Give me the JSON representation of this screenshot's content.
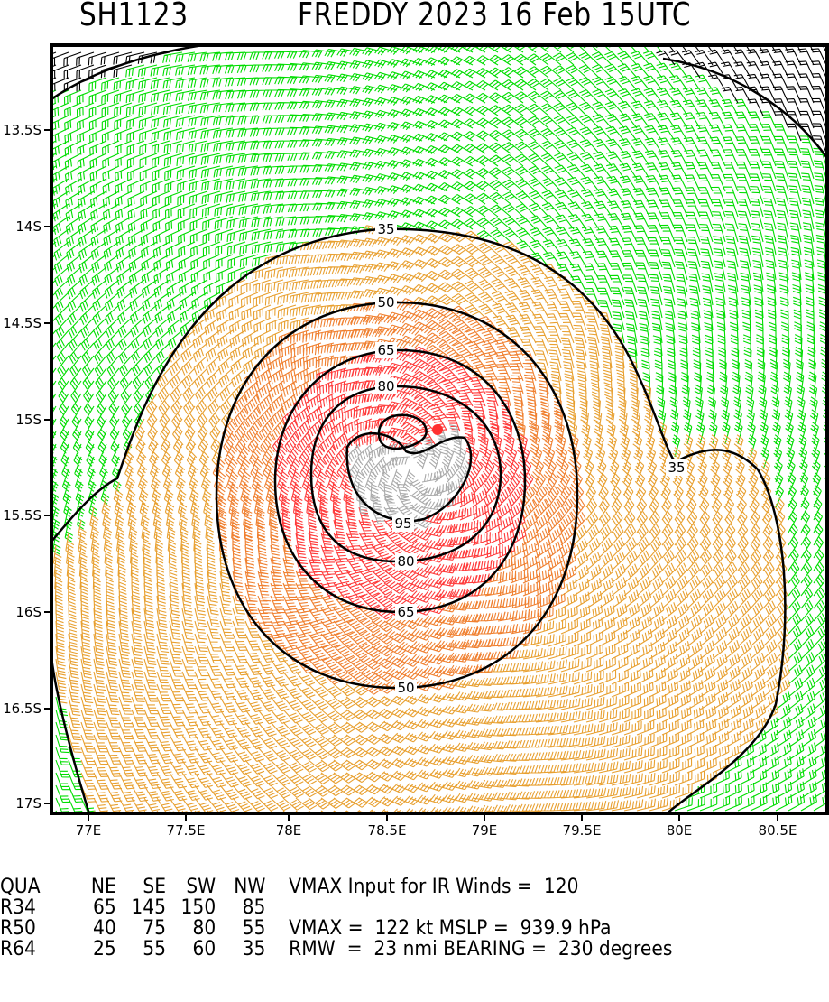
{
  "header": {
    "storm_id": "SH1123",
    "title": "FREDDY 2023 16 Feb 15UTC"
  },
  "chart_data": {
    "type": "wind-barb map",
    "lon_ticks": [
      "77E",
      "77.5E",
      "78E",
      "78.5E",
      "79E",
      "79.5E",
      "80E",
      "80.5E"
    ],
    "lat_ticks": [
      "13.5S",
      "14S",
      "14.5S",
      "15S",
      "15.5S",
      "16S",
      "16.5S",
      "17S"
    ],
    "contour_levels_kt": [
      35,
      50,
      65,
      80,
      95
    ],
    "contour_labels": [
      "35",
      "35",
      "50",
      "50",
      "65",
      "65",
      "80",
      "80",
      "95"
    ],
    "center": {
      "lon": 78.77,
      "lat": -15.05
    },
    "colors": {
      "lt34": "#00dd00",
      "34to50": "#e8a030",
      "50to64": "#f08030",
      "64to95": "#ff3a3a",
      "gt95": "#aaaaaa",
      "calm": "#000000",
      "center": "#ff3030"
    }
  },
  "table": {
    "headers": [
      "QUA",
      "NE",
      "SE",
      "SW",
      "NW"
    ],
    "rows": [
      [
        "R34",
        "65",
        "145",
        "150",
        "85"
      ],
      [
        "R50",
        "40",
        "75",
        "80",
        "55"
      ],
      [
        "R64",
        "25",
        "55",
        "60",
        "35"
      ]
    ],
    "vmax_input": "VMAX Input for IR Winds =  120",
    "vmax_mslp": "VMAX =  122 kt MSLP =  939.9 hPa",
    "rmw_bearing": "RMW  =  23 nmi BEARING =  230 degrees"
  }
}
